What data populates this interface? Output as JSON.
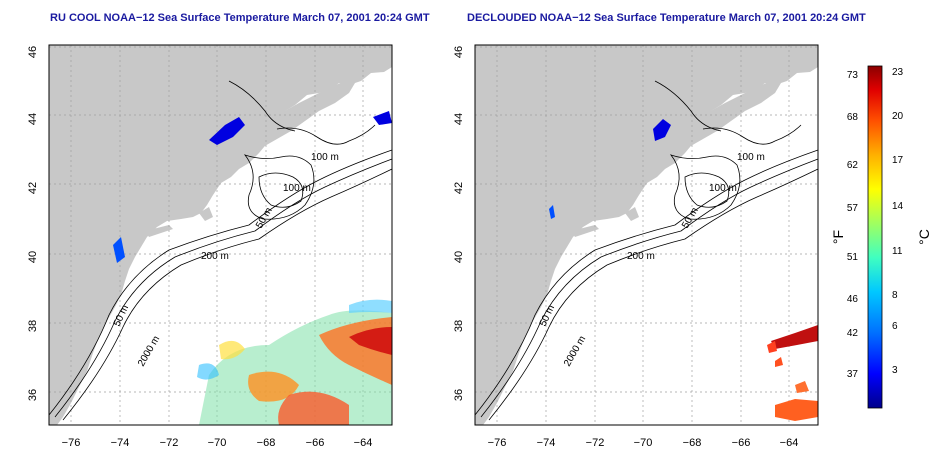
{
  "titles": {
    "left": "RU COOL NOAA−12 Sea Surface Temperature March 07, 2001 20:24 GMT",
    "right": "DECLOUDED NOAA−12 Sea Surface Temperature March 07, 2001 20:24 GMT"
  },
  "axes": {
    "x_ticks": [
      "−76",
      "−74",
      "−72",
      "−70",
      "−68",
      "−66",
      "−64"
    ],
    "y_ticks": [
      "46",
      "44",
      "42",
      "40",
      "38",
      "36"
    ]
  },
  "contour_labels": {
    "left": [
      "100 m",
      "100 m",
      "50 m",
      "200 m",
      "50 m",
      "2000 m"
    ],
    "right": [
      "100 m",
      "100 m",
      "50 m",
      "200 m",
      "50 m",
      "2000 m"
    ]
  },
  "colorbar": {
    "fahrenheit_ticks": [
      "73",
      "68",
      "62",
      "57",
      "51",
      "46",
      "42",
      "37"
    ],
    "celsius_ticks": [
      "23",
      "20",
      "17",
      "14",
      "11",
      "8",
      "6",
      "3"
    ],
    "fahrenheit_unit": "°F",
    "celsius_unit": "°C",
    "colors": [
      "#00008b",
      "#0000ff",
      "#0080ff",
      "#00d0ff",
      "#40ffc0",
      "#a0ff60",
      "#ffff00",
      "#ffb000",
      "#ff5000",
      "#e00000",
      "#8b0000"
    ]
  },
  "colors": {
    "land": "#c8c8c8",
    "ocean": "#ffffff",
    "grid": "#a0a0a0",
    "title": "#1a1aa0"
  }
}
